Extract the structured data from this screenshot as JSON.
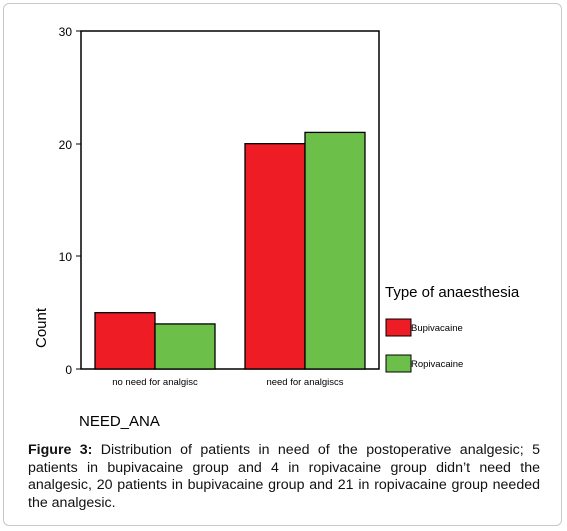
{
  "chart_data": {
    "type": "bar",
    "xlabel": "NEED_ANA",
    "ylabel": "Count",
    "ylim": [
      0,
      30
    ],
    "yticks": [
      "0",
      "10",
      "20",
      "30"
    ],
    "categories": [
      "no need for analgisc",
      "need for analgiscs"
    ],
    "legend_title": "Type of anaesthesia",
    "legend_position": "right",
    "grid": false,
    "series": [
      {
        "name": "Bupivacaine",
        "values": [
          5,
          20
        ],
        "color": "#ee1d25"
      },
      {
        "name": "Ropivacaine",
        "values": [
          4,
          21
        ],
        "color": "#6cc04a"
      }
    ]
  },
  "caption": {
    "label": "Figure 3:",
    "text": "Distribution of patients in need of the postoperative analgesic; 5 patients in bupivacaine group and 4 in ropivacaine group didn’t need the analgesic, 20 patients in bupivacaine group and 21 in ropivacaine group needed the analgesic."
  }
}
